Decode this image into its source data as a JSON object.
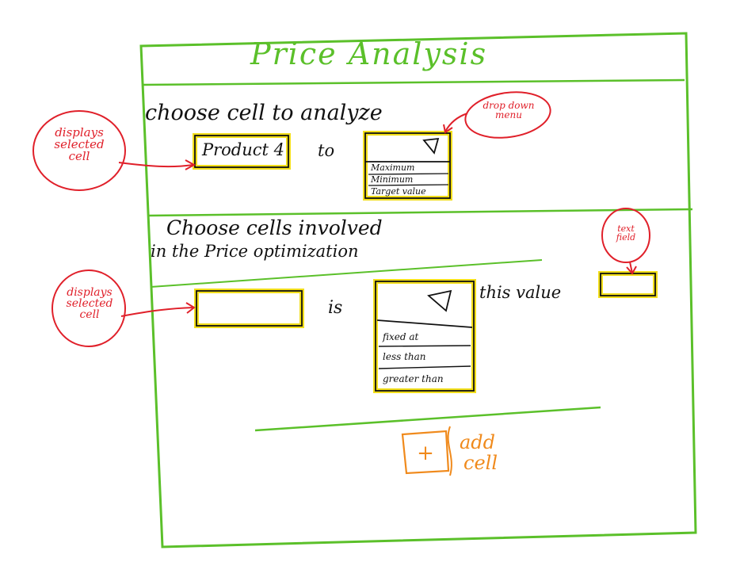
{
  "title": "Price Analysis",
  "section1": {
    "heading": "choose cell to analyze",
    "selected_cell": "Product 4",
    "connector": "to",
    "dropdown_options": [
      "Maximum",
      "Minimum",
      "Target value"
    ]
  },
  "section2": {
    "heading_line1": "Choose cells involved",
    "heading_line2": "in the Price optimization",
    "connector": "is",
    "dropdown_options": [
      "fixed at",
      "less than",
      "greater than"
    ],
    "value_label": "this value"
  },
  "add_button": {
    "symbol": "+",
    "label_line1": "add",
    "label_line2": "cell"
  },
  "annotations": {
    "dropdown_menu": [
      "drop down",
      "menu"
    ],
    "displays_selected_cell_top": [
      "displays",
      "selected",
      "cell"
    ],
    "displays_selected_cell_bottom": [
      "displays",
      "selected",
      "cell"
    ],
    "text_field": [
      "text",
      "field"
    ]
  },
  "colors": {
    "frame": "#5bc02a",
    "highlight": "#f2de1a",
    "annotation": "#e0202a",
    "button": "#f08a1c",
    "ink": "#111111"
  }
}
